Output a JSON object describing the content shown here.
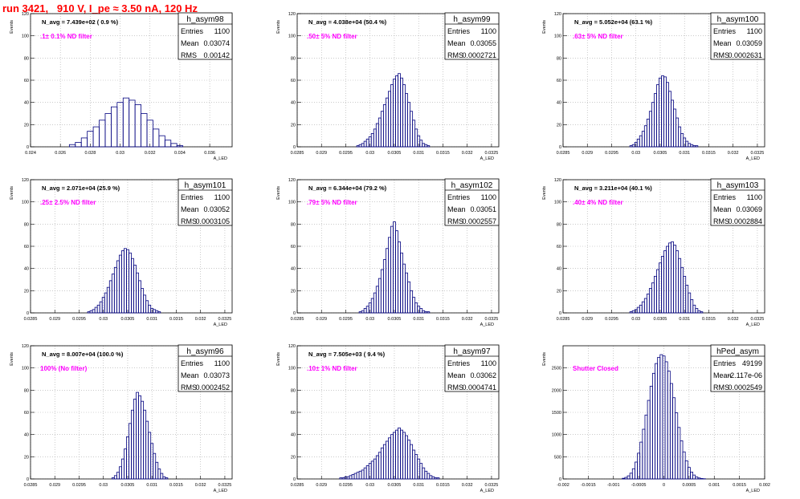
{
  "title": "run 3421,   910 V, I_pe ≈ 3.50 nA, 120 Hz",
  "colors": {
    "title": "#ff0000",
    "hist_line": "#00007f",
    "annotation": "#ff00ff",
    "grid": "#aaaaaa"
  },
  "common": {
    "ylabel": "Events",
    "xlabel": "A_LED",
    "stats_labels": [
      "Entries",
      "Mean",
      "RMS"
    ]
  },
  "chart_data": [
    {
      "type": "bar",
      "name": "h_asym98",
      "n_avg": "N_avg = 7.439e+02 ( 0.9 %)",
      "annotation": ".1± 0.1% ND filter",
      "stats": {
        "entries": "1100",
        "mean": "0.03074",
        "rms": "0.00142"
      },
      "xlim": [
        0.024,
        0.0375
      ],
      "ylim": [
        0,
        120
      ],
      "xticks": [
        0.024,
        0.026,
        0.028,
        0.03,
        0.032,
        0.034,
        0.036
      ],
      "xtick_labels": [
        "0.024",
        "0.026",
        "0.028",
        "0.03",
        "0.032",
        "0.034",
        "0.036"
      ],
      "yticks": [
        0,
        20,
        40,
        60,
        80,
        100,
        120
      ],
      "x": [
        0.0268,
        0.0272,
        0.0276,
        0.028,
        0.0284,
        0.0288,
        0.0292,
        0.0296,
        0.03,
        0.0304,
        0.0308,
        0.0312,
        0.0316,
        0.032,
        0.0324,
        0.0328,
        0.0332,
        0.0336,
        0.034
      ],
      "values": [
        2,
        4,
        8,
        14,
        18,
        24,
        30,
        36,
        40,
        44,
        42,
        38,
        30,
        24,
        16,
        10,
        6,
        3,
        1
      ]
    },
    {
      "type": "bar",
      "name": "h_asym99",
      "n_avg": "N_avg = 4.038e+04 (50.4 %)",
      "annotation": ".50± 5% ND filter",
      "stats": {
        "entries": "1100",
        "mean": "0.03055",
        "rms": "0.0002721"
      },
      "xlim": [
        0.0285,
        0.03265
      ],
      "ylim": [
        0,
        120
      ],
      "xticks": [
        0.0285,
        0.029,
        0.0295,
        0.03,
        0.0305,
        0.031,
        0.0315,
        0.032,
        0.0325
      ],
      "xtick_labels": [
        "0.0285",
        "0.029",
        "0.0295",
        "0.03",
        "0.0305",
        "0.031",
        "0.0315",
        "0.032",
        "0.0325"
      ],
      "yticks": [
        0,
        20,
        40,
        60,
        80,
        100,
        120
      ],
      "x": [
        0.02975,
        0.0298,
        0.02985,
        0.0299,
        0.02995,
        0.03,
        0.03005,
        0.0301,
        0.03015,
        0.0302,
        0.03025,
        0.0303,
        0.03035,
        0.0304,
        0.03045,
        0.0305,
        0.03055,
        0.0306,
        0.03065,
        0.0307,
        0.03075,
        0.0308,
        0.03085,
        0.0309,
        0.03095,
        0.031,
        0.03105,
        0.0311,
        0.03115,
        0.0312
      ],
      "values": [
        1,
        2,
        3,
        5,
        7,
        9,
        12,
        16,
        21,
        26,
        32,
        38,
        44,
        50,
        56,
        61,
        64,
        66,
        62,
        56,
        48,
        40,
        32,
        24,
        16,
        10,
        6,
        3,
        2,
        1
      ]
    },
    {
      "type": "bar",
      "name": "h_asym100",
      "n_avg": "N_avg = 5.052e+04 (63.1 %)",
      "annotation": ".63± 5% ND filter",
      "stats": {
        "entries": "1100",
        "mean": "0.03059",
        "rms": "0.0002631"
      },
      "xlim": [
        0.0285,
        0.03265
      ],
      "ylim": [
        0,
        120
      ],
      "xticks": [
        0.0285,
        0.029,
        0.0295,
        0.03,
        0.0305,
        0.031,
        0.0315,
        0.032,
        0.0325
      ],
      "xtick_labels": [
        "0.0285",
        "0.029",
        "0.0295",
        "0.03",
        "0.0305",
        "0.031",
        "0.0315",
        "0.032",
        "0.0325"
      ],
      "yticks": [
        0,
        20,
        40,
        60,
        80,
        100,
        120
      ],
      "x": [
        0.0299,
        0.02995,
        0.03,
        0.03005,
        0.0301,
        0.03015,
        0.0302,
        0.03025,
        0.0303,
        0.03035,
        0.0304,
        0.03045,
        0.0305,
        0.03055,
        0.0306,
        0.03065,
        0.0307,
        0.03075,
        0.0308,
        0.03085,
        0.0309,
        0.03095,
        0.031,
        0.03105,
        0.0311,
        0.03115,
        0.0312,
        0.03125
      ],
      "values": [
        1,
        2,
        4,
        7,
        10,
        14,
        19,
        25,
        32,
        40,
        48,
        56,
        62,
        64,
        63,
        58,
        50,
        42,
        34,
        26,
        18,
        12,
        8,
        5,
        3,
        2,
        1,
        1
      ]
    },
    {
      "type": "bar",
      "name": "h_asym101",
      "n_avg": "N_avg = 2.071e+04 (25.9 %)",
      "annotation": ".25± 2.5% ND filter",
      "stats": {
        "entries": "1100",
        "mean": "0.03052",
        "rms": "0.0003105"
      },
      "xlim": [
        0.0285,
        0.03265
      ],
      "ylim": [
        0,
        120
      ],
      "xticks": [
        0.0285,
        0.029,
        0.0295,
        0.03,
        0.0305,
        0.031,
        0.0315,
        0.032,
        0.0325
      ],
      "xtick_labels": [
        "0.0285",
        "0.029",
        "0.0295",
        "0.03",
        "0.0305",
        "0.031",
        "0.0315",
        "0.032",
        "0.0325"
      ],
      "yticks": [
        0,
        20,
        40,
        60,
        80,
        100,
        120
      ],
      "x": [
        0.0297,
        0.02975,
        0.0298,
        0.02985,
        0.0299,
        0.02995,
        0.03,
        0.03005,
        0.0301,
        0.03015,
        0.0302,
        0.03025,
        0.0303,
        0.03035,
        0.0304,
        0.03045,
        0.0305,
        0.03055,
        0.0306,
        0.03065,
        0.0307,
        0.03075,
        0.0308,
        0.03085,
        0.0309,
        0.03095,
        0.031,
        0.03105,
        0.0311,
        0.03115
      ],
      "values": [
        1,
        2,
        3,
        5,
        7,
        10,
        14,
        18,
        23,
        29,
        35,
        41,
        47,
        52,
        56,
        58,
        57,
        54,
        49,
        43,
        36,
        29,
        22,
        16,
        11,
        7,
        4,
        3,
        2,
        1
      ]
    },
    {
      "type": "bar",
      "name": "h_asym102",
      "n_avg": "N_avg = 6.344e+04 (79.2 %)",
      "annotation": ".79± 5% ND filter",
      "stats": {
        "entries": "1100",
        "mean": "0.03051",
        "rms": "0.0002557"
      },
      "xlim": [
        0.0285,
        0.03265
      ],
      "ylim": [
        0,
        120
      ],
      "xticks": [
        0.0285,
        0.029,
        0.0295,
        0.03,
        0.0305,
        0.031,
        0.0315,
        0.032,
        0.0325
      ],
      "xtick_labels": [
        "0.0285",
        "0.029",
        "0.0295",
        "0.03",
        "0.0305",
        "0.031",
        "0.0315",
        "0.032",
        "0.0325"
      ],
      "yticks": [
        0,
        20,
        40,
        60,
        80,
        100,
        120
      ],
      "x": [
        0.0298,
        0.02985,
        0.0299,
        0.02995,
        0.03,
        0.03005,
        0.0301,
        0.03015,
        0.0302,
        0.03025,
        0.0303,
        0.03035,
        0.0304,
        0.03045,
        0.0305,
        0.03055,
        0.0306,
        0.03065,
        0.0307,
        0.03075,
        0.0308,
        0.03085,
        0.0309,
        0.03095,
        0.031,
        0.03105,
        0.0311,
        0.03115,
        0.0312
      ],
      "values": [
        1,
        2,
        4,
        6,
        9,
        13,
        18,
        24,
        31,
        39,
        48,
        58,
        68,
        78,
        82,
        74,
        64,
        54,
        44,
        36,
        28,
        20,
        14,
        9,
        6,
        4,
        2,
        1,
        1
      ]
    },
    {
      "type": "bar",
      "name": "h_asym103",
      "n_avg": "N_avg = 3.211e+04 (40.1 %)",
      "annotation": ".40± 4% ND filter",
      "stats": {
        "entries": "1100",
        "mean": "0.03069",
        "rms": "0.0002884"
      },
      "xlim": [
        0.0285,
        0.03265
      ],
      "ylim": [
        0,
        120
      ],
      "xticks": [
        0.0285,
        0.029,
        0.0295,
        0.03,
        0.0305,
        0.031,
        0.0315,
        0.032,
        0.0325
      ],
      "xtick_labels": [
        "0.0285",
        "0.029",
        "0.0295",
        "0.03",
        "0.0305",
        "0.031",
        "0.0315",
        "0.032",
        "0.0325"
      ],
      "yticks": [
        0,
        20,
        40,
        60,
        80,
        100,
        120
      ],
      "x": [
        0.0299,
        0.02995,
        0.03,
        0.03005,
        0.0301,
        0.03015,
        0.0302,
        0.03025,
        0.0303,
        0.03035,
        0.0304,
        0.03045,
        0.0305,
        0.03055,
        0.0306,
        0.03065,
        0.0307,
        0.03075,
        0.0308,
        0.03085,
        0.0309,
        0.03095,
        0.031,
        0.03105,
        0.0311,
        0.03115,
        0.0312,
        0.03125,
        0.0313,
        0.03135
      ],
      "values": [
        1,
        2,
        3,
        5,
        7,
        10,
        13,
        17,
        22,
        27,
        33,
        39,
        45,
        51,
        56,
        60,
        63,
        64,
        61,
        56,
        49,
        41,
        33,
        25,
        18,
        12,
        7,
        4,
        2,
        1
      ]
    },
    {
      "type": "bar",
      "name": "h_asym96",
      "n_avg": "N_avg = 8.007e+04 (100.0 %)",
      "annotation": "100% (No filter)",
      "stats": {
        "entries": "1100",
        "mean": "0.03073",
        "rms": "0.0002452"
      },
      "xlim": [
        0.0285,
        0.03265
      ],
      "ylim": [
        0,
        120
      ],
      "xticks": [
        0.0285,
        0.029,
        0.0295,
        0.03,
        0.0305,
        0.031,
        0.0315,
        0.032,
        0.0325
      ],
      "xtick_labels": [
        "0.0285",
        "0.029",
        "0.0295",
        "0.03",
        "0.0305",
        "0.031",
        "0.0315",
        "0.032",
        "0.0325"
      ],
      "yticks": [
        0,
        20,
        40,
        60,
        80,
        100,
        120
      ],
      "x": [
        0.0302,
        0.03025,
        0.0303,
        0.03035,
        0.0304,
        0.03045,
        0.0305,
        0.03055,
        0.0306,
        0.03065,
        0.0307,
        0.03075,
        0.0308,
        0.03085,
        0.0309,
        0.03095,
        0.031,
        0.03105,
        0.0311,
        0.03115,
        0.0312,
        0.03125,
        0.0313
      ],
      "values": [
        1,
        3,
        6,
        11,
        18,
        27,
        38,
        50,
        62,
        72,
        78,
        75,
        70,
        62,
        52,
        42,
        32,
        23,
        15,
        9,
        5,
        2,
        1
      ]
    },
    {
      "type": "bar",
      "name": "h_asym97",
      "n_avg": "N_avg = 7.505e+03 ( 9.4 %)",
      "annotation": ".10± 1% ND filter",
      "stats": {
        "entries": "1100",
        "mean": "0.03062",
        "rms": "0.0004741"
      },
      "xlim": [
        0.0285,
        0.03265
      ],
      "ylim": [
        0,
        120
      ],
      "xticks": [
        0.0285,
        0.029,
        0.0295,
        0.03,
        0.0305,
        0.031,
        0.0315,
        0.032,
        0.0325
      ],
      "xtick_labels": [
        "0.0285",
        "0.029",
        "0.0295",
        "0.03",
        "0.0305",
        "0.031",
        "0.0315",
        "0.032",
        "0.0325"
      ],
      "yticks": [
        0,
        20,
        40,
        60,
        80,
        100,
        120
      ],
      "x": [
        0.0294,
        0.02945,
        0.0295,
        0.02955,
        0.0296,
        0.02965,
        0.0297,
        0.02975,
        0.0298,
        0.02985,
        0.0299,
        0.02995,
        0.03,
        0.03005,
        0.0301,
        0.03015,
        0.0302,
        0.03025,
        0.0303,
        0.03035,
        0.0304,
        0.03045,
        0.0305,
        0.03055,
        0.0306,
        0.03065,
        0.0307,
        0.03075,
        0.0308,
        0.03085,
        0.0309,
        0.03095,
        0.031,
        0.03105,
        0.0311,
        0.03115,
        0.0312,
        0.03125,
        0.0313,
        0.03135,
        0.0314
      ],
      "values": [
        1,
        1,
        2,
        2,
        3,
        4,
        5,
        6,
        7,
        8,
        10,
        12,
        14,
        16,
        18,
        21,
        24,
        28,
        31,
        34,
        37,
        40,
        42,
        44,
        46,
        44,
        42,
        39,
        35,
        31,
        26,
        22,
        18,
        14,
        10,
        7,
        5,
        3,
        2,
        1,
        1
      ]
    },
    {
      "type": "bar",
      "name": "hPed_asym",
      "n_avg": "",
      "annotation": "Shutter Closed",
      "stats": {
        "entries": "49199",
        "mean": "-2.117e-06",
        "rms": "0.0002549"
      },
      "xlim": [
        -0.002,
        0.002
      ],
      "ylim": [
        0,
        3000
      ],
      "xticks": [
        -0.002,
        -0.0015,
        -0.001,
        -0.0005,
        0,
        0.0005,
        0.001,
        0.0015,
        0.002
      ],
      "xtick_labels": [
        "-0.002",
        "-0.0015",
        "-0.001",
        "-0.0005",
        "0",
        "0.0005",
        "0.001",
        "0.0015",
        "0.002"
      ],
      "yticks": [
        0,
        500,
        1000,
        1500,
        2000,
        2500
      ],
      "x": [
        -0.0008,
        -0.00075,
        -0.0007,
        -0.00065,
        -0.0006,
        -0.00055,
        -0.0005,
        -0.00045,
        -0.0004,
        -0.00035,
        -0.0003,
        -0.00025,
        -0.0002,
        -0.00015,
        -0.0001,
        -5e-05,
        0,
        5e-05,
        0.0001,
        0.00015,
        0.0002,
        0.00025,
        0.0003,
        0.00035,
        0.0004,
        0.00045,
        0.0005,
        0.00055,
        0.0006,
        0.00065,
        0.0007,
        0.00075,
        0.0008
      ],
      "values": [
        15,
        35,
        70,
        130,
        230,
        380,
        580,
        830,
        1120,
        1440,
        1770,
        2090,
        2380,
        2600,
        2740,
        2800,
        2770,
        2640,
        2430,
        2150,
        1830,
        1490,
        1160,
        860,
        610,
        410,
        260,
        155,
        88,
        45,
        22,
        10,
        5
      ]
    }
  ]
}
